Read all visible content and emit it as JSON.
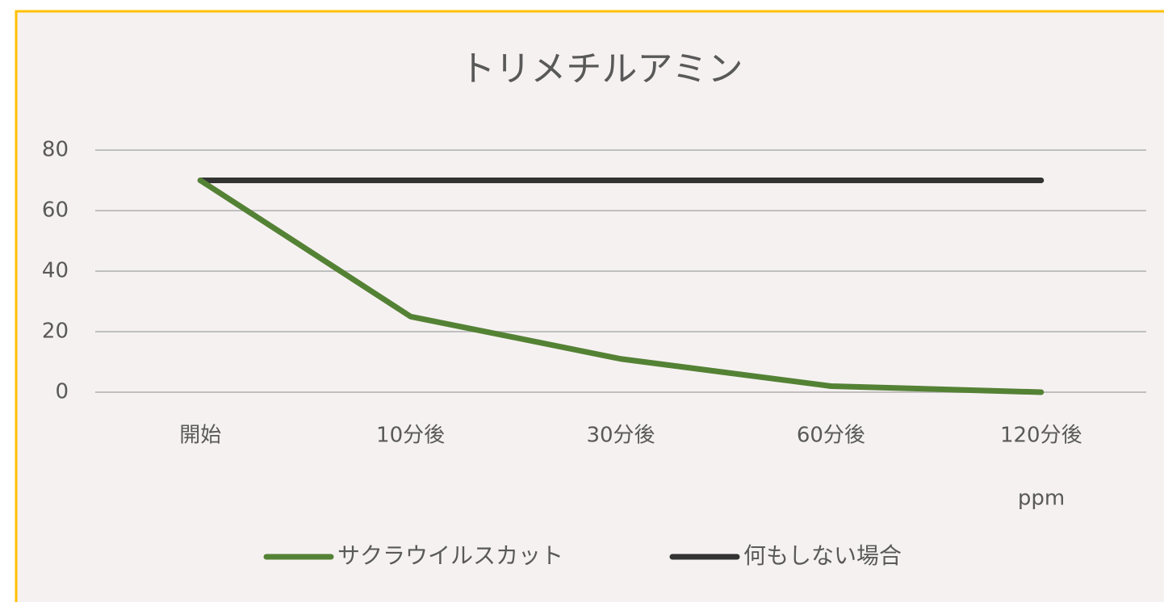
{
  "chart_data": {
    "type": "line",
    "title": "トリメチルアミン",
    "categories": [
      "開始",
      "10分後",
      "30分後",
      "60分後",
      "120分後"
    ],
    "series": [
      {
        "name": "サクラウイルスカット",
        "color": "#548235",
        "values": [
          70,
          25,
          11,
          2,
          0
        ]
      },
      {
        "name": "何もしない場合",
        "color": "#333333",
        "values": [
          70,
          70,
          70,
          70,
          70
        ]
      }
    ],
    "annotation": "ppm",
    "ylim": [
      0,
      80
    ],
    "yticks": [
      0,
      20,
      40,
      60,
      80
    ],
    "grid": true,
    "legend": "bottom"
  }
}
